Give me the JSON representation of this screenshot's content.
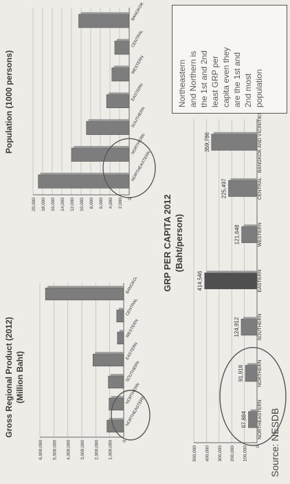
{
  "page_title_top": "",
  "chart_data": [
    {
      "type": "bar",
      "title": "Gross Regional Product  (2012)",
      "subtitle": "(Million Baht)",
      "categories": [
        "NORTHEASTERN",
        "NORTHERN",
        "SOUTHERN",
        "EASTERN",
        "WESTERN",
        "CENTRAL",
        "BANGKOK AND VICINITIES"
      ],
      "values": [
        1200000,
        1050000,
        1100000,
        2200000,
        450000,
        500000,
        5600000
      ],
      "ylim": [
        0,
        6000000
      ],
      "yticks": [
        "6,000,000",
        "5,000,000",
        "4,000,000",
        "3,000,000",
        "2,000,000",
        "1,000,000",
        "0"
      ],
      "highlight": [
        "NORTHEASTERN",
        "NORTHERN"
      ]
    },
    {
      "type": "bar",
      "title": "Population  (1000 persons)",
      "categories": [
        "NORTHEASTERN",
        "NORTHERN",
        "SOUTHERN",
        "EASTERN",
        "WESTERN",
        "CENTRAL",
        "BANGKOK AND VICINITIES"
      ],
      "values": [
        18900,
        12000,
        8900,
        4700,
        3600,
        3000,
        10500
      ],
      "ylim": [
        0,
        20000
      ],
      "yticks": [
        "20,000",
        "18,000",
        "16,000",
        "14,000",
        "12,000",
        "10,000",
        "8,000",
        "6,000",
        "4,000",
        "2,000",
        "0"
      ],
      "highlight": [
        "NORTHEASTERN",
        "NORTHERN"
      ]
    },
    {
      "type": "bar",
      "title": "GRP PER CAPITA 2012",
      "subtitle": "(Baht/person)",
      "categories": [
        "NORTHEASTERN",
        "NORTHERN",
        "SOUTHERN",
        "EASTERN",
        "WESTERN",
        "CENTRAL",
        "BANGKOK AND VICINITIES"
      ],
      "values": [
        67884,
        91918,
        124912,
        414546,
        121648,
        225497,
        359786
      ],
      "value_labels": [
        "67,884",
        "91,918",
        "124,912",
        "414,546",
        "121,648",
        "225,497",
        "359,786"
      ],
      "ylim": [
        0,
        500000
      ],
      "yticks": [
        "500,000",
        "400,000",
        "300,000",
        "200,000",
        "100,000",
        "0"
      ],
      "highlight": [
        "NORTHEASTERN",
        "NORTHERN"
      ]
    }
  ],
  "note": {
    "lines": [
      "Northeastern",
      "and Northern is",
      "the 1st and 2nd",
      "least GRP per",
      "capita even they",
      "are the 1st and",
      "2nd most",
      "population"
    ]
  },
  "source": "Source: NESDB",
  "colors": {
    "bar": "#7d7d7d",
    "bar_dark": "#4f4f4f",
    "grid": "#b8b8b8",
    "text": "#333333",
    "ellipse": "#555555"
  }
}
